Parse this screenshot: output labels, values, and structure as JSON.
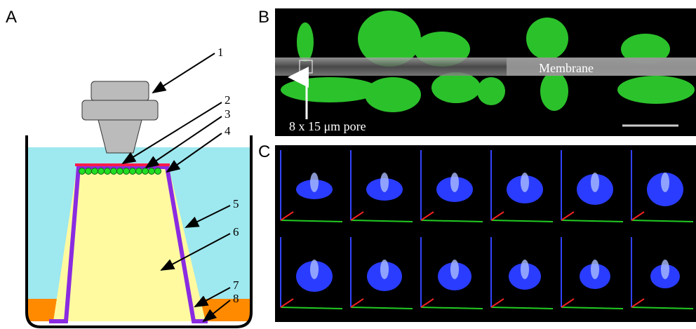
{
  "panels": {
    "a": "A",
    "b": "B",
    "c": "C"
  },
  "diagram": {
    "labels": [
      "1",
      "2",
      "3",
      "4",
      "5",
      "6",
      "7",
      "8"
    ]
  },
  "image_b": {
    "membrane": "Membrane",
    "pore": "8 x 15 μm pore"
  }
}
